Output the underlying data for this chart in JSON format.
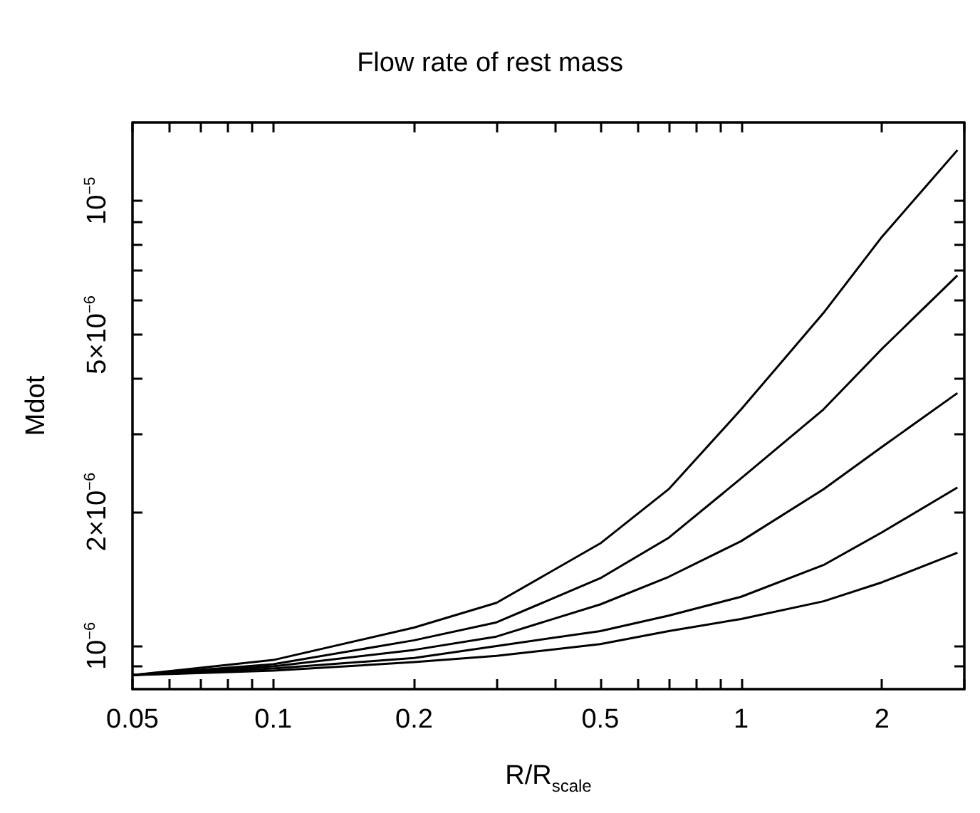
{
  "chart_data": {
    "type": "line",
    "title": "Flow rate of rest mass",
    "xlabel": "R/R$_{scale}$",
    "ylabel": "Mdot",
    "log": "xy",
    "grid": false,
    "marker": "none",
    "line_style": "solid",
    "x": [
      0.05,
      0.1,
      0.2,
      0.3,
      0.5,
      0.7,
      1,
      1.5,
      2,
      2.9
    ],
    "xlim": [
      0.05,
      3
    ],
    "xticks": [
      0.05,
      {
        "value": 0.06,
        "label": null
      },
      {
        "value": 0.07,
        "label": null
      },
      {
        "value": 0.08,
        "label": null
      },
      {
        "value": 0.09,
        "label": null
      },
      0.1,
      0.2,
      {
        "value": 0.3,
        "label": null
      },
      {
        "value": 0.4,
        "label": null
      },
      0.5,
      {
        "value": 0.6,
        "label": null
      },
      {
        "value": 0.7,
        "label": null
      },
      {
        "value": 0.8,
        "label": null
      },
      {
        "value": 0.9,
        "label": null
      },
      1,
      2,
      {
        "value": 3,
        "label": null
      }
    ],
    "ylim": [
      8e-07,
      1.5e-05
    ],
    "yticks": [
      {
        "value": 9e-07,
        "label": null
      },
      {
        "value": 1e-06,
        "label": "10$^{−6}$"
      },
      {
        "value": 2e-06,
        "label": "2×10$^{−6}$"
      },
      {
        "value": 3e-06,
        "label": null
      },
      {
        "value": 4e-06,
        "label": null
      },
      {
        "value": 5e-06,
        "label": "5×10$^{−6}$"
      },
      {
        "value": 6e-06,
        "label": null
      },
      {
        "value": 7e-06,
        "label": null
      },
      {
        "value": 8e-06,
        "label": null
      },
      {
        "value": 9e-06,
        "label": null
      },
      {
        "value": 1e-05,
        "label": "10$^{−5}$"
      }
    ],
    "series": [
      {
        "color": "#000000",
        "values": [
          8.6e-07,
          9.3e-07,
          1.1e-06,
          1.25e-06,
          1.7e-06,
          2.25e-06,
          3.4e-06,
          5.6e-06,
          8.3e-06,
          1.3e-05
        ]
      },
      {
        "color": "#000000",
        "values": [
          8.6e-07,
          9.1e-07,
          1.03e-06,
          1.13e-06,
          1.42e-06,
          1.75e-06,
          2.38e-06,
          3.4e-06,
          4.65e-06,
          6.8e-06
        ]
      },
      {
        "color": "#000000",
        "values": [
          8.6e-07,
          9e-07,
          9.8e-07,
          1.05e-06,
          1.24e-06,
          1.43e-06,
          1.72e-06,
          2.25e-06,
          2.8e-06,
          3.7e-06
        ]
      },
      {
        "color": "#000000",
        "values": [
          8.6e-07,
          8.9e-07,
          9.4e-07,
          1e-06,
          1.08e-06,
          1.17e-06,
          1.29e-06,
          1.52e-06,
          1.8e-06,
          2.27e-06
        ]
      },
      {
        "color": "#000000",
        "values": [
          8.6e-07,
          8.8e-07,
          9.2e-07,
          9.5e-07,
          1.01e-06,
          1.08e-06,
          1.15e-06,
          1.26e-06,
          1.39e-06,
          1.62e-06
        ]
      }
    ]
  }
}
